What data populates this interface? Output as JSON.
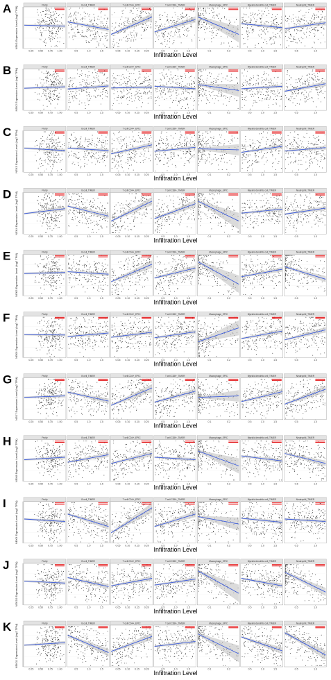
{
  "figure": {
    "xlabel": "Infiltration Level",
    "facets": [
      "Purity",
      "B cell_TIMER",
      "T cell CD4+_EPIC",
      "T cell CD8+_TIMER",
      "Macrophage_EPIC",
      "Myeloid dendritic cell_TIMER",
      "Neutrophil_TIMER"
    ],
    "panels": [
      {
        "letter": "A",
        "ylabel": "NEK1 Expression Level (log2 TPM)"
      },
      {
        "letter": "B",
        "ylabel": "NEK2 Expression Level (log2 TPM)"
      },
      {
        "letter": "C",
        "ylabel": "NEK3 Expression Level (log2 TPM)"
      },
      {
        "letter": "D",
        "ylabel": "NEK4 Expression Level (log2 TPM)"
      },
      {
        "letter": "E",
        "ylabel": "NEK5 Expression Level (log2 TPM)"
      },
      {
        "letter": "F",
        "ylabel": "NEK6 Expression Level (log2 TPM)"
      },
      {
        "letter": "G",
        "ylabel": "NEK7 Expression Level (log2 TPM)"
      },
      {
        "letter": "H",
        "ylabel": "NEK8 Expression Level (log2 TPM)"
      },
      {
        "letter": "I",
        "ylabel": "NEK9 Expression Level (log2 TPM)"
      },
      {
        "letter": "J",
        "ylabel": "NEK10 Expression Level (log2 TPM)"
      },
      {
        "letter": "K",
        "ylabel": "NEK11 Expression Level (log2 TPM)"
      }
    ],
    "colors": {
      "points": "#111111",
      "fit": "#3b5bdb",
      "band": "#bdbdbd",
      "strip": "#e3e3e3",
      "stat": "#e41a1c"
    }
  },
  "chart_data": {
    "type": "scatter",
    "facets": [
      "Purity",
      "B cell_TIMER",
      "T cell CD4+_EPIC",
      "T cell CD8+_TIMER",
      "Macrophage_EPIC",
      "Myeloid dendritic cell_TIMER",
      "Neutrophil_TIMER"
    ],
    "x_ticks": {
      "Purity": [
        "0.25",
        "0.50",
        "0.75",
        "1.00"
      ],
      "B cell_TIMER": [
        "0.5",
        "1.0",
        "1.5"
      ],
      "T cell CD4+_EPIC": [
        "0.05",
        "0.10",
        "0.15",
        "0.20"
      ],
      "T cell CD8+_TIMER": [
        "0.5",
        "1.0",
        "1.5"
      ],
      "Macrophage_EPIC": [
        "0.1",
        "0.2"
      ],
      "Myeloid dendritic cell_TIMER": [
        "0.5",
        "1.0",
        "1.5"
      ],
      "Neutrophil_TIMER": [
        "0.5",
        "1.0"
      ]
    },
    "genes": [
      {
        "name": "NEK1",
        "slopes": [
          -0.02,
          -0.15,
          0.35,
          0.25,
          -0.35,
          -0.08,
          0.12
        ]
      },
      {
        "name": "NEK2",
        "slopes": [
          0.03,
          0.06,
          0.02,
          -0.05,
          -0.12,
          0.05,
          0.15
        ]
      },
      {
        "name": "NEK3",
        "slopes": [
          -0.05,
          -0.05,
          0.18,
          0.08,
          -0.02,
          0.12,
          0.07
        ]
      },
      {
        "name": "NEK4",
        "slopes": [
          0.1,
          -0.2,
          0.4,
          0.3,
          -0.4,
          0.08,
          0.12
        ]
      },
      {
        "name": "NEK5",
        "slopes": [
          0.02,
          -0.05,
          0.35,
          0.2,
          -0.45,
          0.15,
          -0.25
        ]
      },
      {
        "name": "NEK6",
        "slopes": [
          -0.01,
          0.07,
          0.1,
          0.12,
          0.28,
          0.15,
          0.2
        ]
      },
      {
        "name": "NEK7",
        "slopes": [
          0.03,
          -0.18,
          0.35,
          0.22,
          0.03,
          0.2,
          0.3
        ]
      },
      {
        "name": "NEK8",
        "slopes": [
          0.05,
          0.15,
          0.2,
          -0.05,
          -0.3,
          -0.1,
          -0.2
        ]
      },
      {
        "name": "NEK9",
        "slopes": [
          -0.05,
          -0.25,
          0.5,
          0.25,
          -0.15,
          -0.08,
          -0.05
        ]
      },
      {
        "name": "NEK10",
        "slopes": [
          -0.04,
          -0.18,
          0.15,
          0.12,
          -0.45,
          -0.15,
          -0.4
        ]
      },
      {
        "name": "NEK11",
        "slopes": [
          0.05,
          -0.35,
          0.3,
          0.1,
          -0.4,
          -0.28,
          -0.45
        ]
      }
    ]
  }
}
